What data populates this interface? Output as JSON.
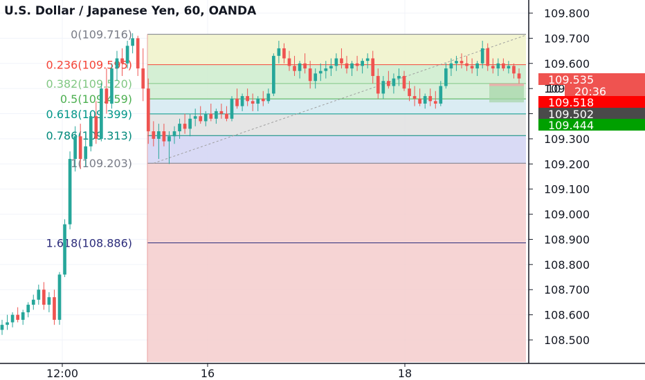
{
  "chart_data": {
    "type": "candlestick",
    "title": "U.S. Dollar / Japanese Yen, 60, OANDA",
    "ylim": [
      108.43,
      109.86
    ],
    "y_ticks": [
      "109.800",
      "109.700",
      "109.600",
      "109.500",
      "109.400",
      "109.300",
      "109.200",
      "109.100",
      "109.000",
      "108.900",
      "108.800",
      "108.700",
      "108.600",
      "108.500"
    ],
    "x_ticks": [
      "12:00",
      "16",
      "18"
    ],
    "grid": true,
    "colors": {
      "up": "#26a69a",
      "down": "#ef5350",
      "text": "#131722",
      "axis": "#131722"
    },
    "fib_levels": [
      {
        "ratio": "0",
        "price": 109.716,
        "label": "0(109.716)",
        "color": "#787b86",
        "fill": "#f4cccc"
      },
      {
        "ratio": "0.236",
        "price": 109.595,
        "label": "0.236(109.595)",
        "color": "#f44336",
        "fill": "#f0f2c9"
      },
      {
        "ratio": "0.382",
        "price": 109.52,
        "label": "0.382(109.520)",
        "color": "#81c784",
        "fill": "#cdeccc"
      },
      {
        "ratio": "0.5",
        "price": 109.459,
        "label": "0.5(109.459)",
        "color": "#4caf50",
        "fill": "#d0ecd2"
      },
      {
        "ratio": "0.618",
        "price": 109.399,
        "label": "0.618(109.399)",
        "color": "#009688",
        "fill": "#d4e9f1"
      },
      {
        "ratio": "0.786",
        "price": 109.313,
        "label": "0.786(109.313)",
        "color": "#00897b",
        "fill": "#e1e1e1"
      },
      {
        "ratio": "1",
        "price": 109.203,
        "label": "1(109.203)",
        "color": "#787b86",
        "fill": "#d2d3f3"
      },
      {
        "ratio": "1.618",
        "price": 108.886,
        "label": "1.618(108.886)",
        "color": "#2b2b7a",
        "fill": "#f4cccc"
      }
    ],
    "price_tags": [
      {
        "label": "109.535",
        "price": 109.535,
        "color": "#ef5350"
      },
      {
        "label": "20:36",
        "price": 109.5,
        "color": "#ef5350"
      },
      {
        "label": "109.518",
        "price": 109.468,
        "color": "#ff0000"
      },
      {
        "label": "109.502",
        "price": 109.436,
        "color": "#4a4a4a"
      },
      {
        "label": "109.444",
        "price": 109.404,
        "color": "#00a000"
      }
    ],
    "candles": [
      [
        108.54,
        108.58,
        108.52,
        108.56
      ],
      [
        108.56,
        108.6,
        108.54,
        108.57
      ],
      [
        108.57,
        108.61,
        108.55,
        108.6
      ],
      [
        108.6,
        108.63,
        108.57,
        108.58
      ],
      [
        108.58,
        108.62,
        108.56,
        108.61
      ],
      [
        108.61,
        108.65,
        108.59,
        108.64
      ],
      [
        108.64,
        108.68,
        108.62,
        108.66
      ],
      [
        108.66,
        108.72,
        108.64,
        108.7
      ],
      [
        108.7,
        108.73,
        108.62,
        108.64
      ],
      [
        108.64,
        108.69,
        108.61,
        108.67
      ],
      [
        108.67,
        108.7,
        108.56,
        108.58
      ],
      [
        108.58,
        108.77,
        108.56,
        108.76
      ],
      [
        108.76,
        108.98,
        108.75,
        108.96
      ],
      [
        108.96,
        109.25,
        108.94,
        109.22
      ],
      [
        109.22,
        109.35,
        109.17,
        109.31
      ],
      [
        109.31,
        109.36,
        109.18,
        109.22
      ],
      [
        109.22,
        109.33,
        109.19,
        109.27
      ],
      [
        109.27,
        109.4,
        109.25,
        109.39
      ],
      [
        109.39,
        109.45,
        109.28,
        109.3
      ],
      [
        109.3,
        109.52,
        109.29,
        109.5
      ],
      [
        109.5,
        109.58,
        109.4,
        109.44
      ],
      [
        109.44,
        109.6,
        109.42,
        109.58
      ],
      [
        109.58,
        109.65,
        109.53,
        109.62
      ],
      [
        109.62,
        109.66,
        109.55,
        109.6
      ],
      [
        109.6,
        109.69,
        109.58,
        109.67
      ],
      [
        109.67,
        109.72,
        109.64,
        109.7
      ],
      [
        109.7,
        109.71,
        109.55,
        109.58
      ],
      [
        109.58,
        109.66,
        109.45,
        109.5
      ],
      [
        109.5,
        109.54,
        109.28,
        109.33
      ],
      [
        109.33,
        109.37,
        109.27,
        109.3
      ],
      [
        109.3,
        109.36,
        109.22,
        109.33
      ],
      [
        109.33,
        109.36,
        109.27,
        109.29
      ],
      [
        109.29,
        109.33,
        109.2,
        109.31
      ],
      [
        109.31,
        109.35,
        109.28,
        109.33
      ],
      [
        109.33,
        109.38,
        109.3,
        109.36
      ],
      [
        109.36,
        109.4,
        109.32,
        109.34
      ],
      [
        109.34,
        109.4,
        109.31,
        109.38
      ],
      [
        109.38,
        109.42,
        109.35,
        109.39
      ],
      [
        109.39,
        109.43,
        109.36,
        109.37
      ],
      [
        109.37,
        109.41,
        109.35,
        109.4
      ],
      [
        109.4,
        109.44,
        109.37,
        109.38
      ],
      [
        109.38,
        109.42,
        109.36,
        109.41
      ],
      [
        109.41,
        109.44,
        109.38,
        109.4
      ],
      [
        109.4,
        109.43,
        109.37,
        109.38
      ],
      [
        109.38,
        109.47,
        109.37,
        109.46
      ],
      [
        109.46,
        109.5,
        109.42,
        109.43
      ],
      [
        109.43,
        109.48,
        109.41,
        109.47
      ],
      [
        109.47,
        109.5,
        109.43,
        109.45
      ],
      [
        109.45,
        109.48,
        109.41,
        109.44
      ],
      [
        109.44,
        109.47,
        109.41,
        109.46
      ],
      [
        109.46,
        109.49,
        109.43,
        109.45
      ],
      [
        109.45,
        109.5,
        109.44,
        109.48
      ],
      [
        109.48,
        109.64,
        109.47,
        109.63
      ],
      [
        109.63,
        109.69,
        109.6,
        109.66
      ],
      [
        109.66,
        109.68,
        109.6,
        109.62
      ],
      [
        109.62,
        109.65,
        109.57,
        109.59
      ],
      [
        109.59,
        109.63,
        109.55,
        109.57
      ],
      [
        109.57,
        109.61,
        109.54,
        109.6
      ],
      [
        109.6,
        109.64,
        109.56,
        109.58
      ],
      [
        109.58,
        109.61,
        109.5,
        109.53
      ],
      [
        109.53,
        109.58,
        109.5,
        109.56
      ],
      [
        109.56,
        109.6,
        109.53,
        109.57
      ],
      [
        109.57,
        109.61,
        109.54,
        109.58
      ],
      [
        109.58,
        109.62,
        109.55,
        109.59
      ],
      [
        109.59,
        109.64,
        109.57,
        109.62
      ],
      [
        109.62,
        109.66,
        109.58,
        109.6
      ],
      [
        109.6,
        109.63,
        109.56,
        109.58
      ],
      [
        109.58,
        109.61,
        109.55,
        109.6
      ],
      [
        109.6,
        109.63,
        109.57,
        109.59
      ],
      [
        109.59,
        109.62,
        109.56,
        109.61
      ],
      [
        109.61,
        109.64,
        109.58,
        109.62
      ],
      [
        109.62,
        109.65,
        109.52,
        109.55
      ],
      [
        109.55,
        109.58,
        109.46,
        109.48
      ],
      [
        109.48,
        109.55,
        109.46,
        109.53
      ],
      [
        109.53,
        109.57,
        109.5,
        109.51
      ],
      [
        109.51,
        109.56,
        109.48,
        109.54
      ],
      [
        109.54,
        109.58,
        109.51,
        109.55
      ],
      [
        109.55,
        109.57,
        109.49,
        109.5
      ],
      [
        109.5,
        109.53,
        109.45,
        109.47
      ],
      [
        109.47,
        109.51,
        109.43,
        109.46
      ],
      [
        109.46,
        109.5,
        109.43,
        109.44
      ],
      [
        109.44,
        109.48,
        109.42,
        109.47
      ],
      [
        109.47,
        109.5,
        109.43,
        109.45
      ],
      [
        109.45,
        109.49,
        109.42,
        109.44
      ],
      [
        109.44,
        109.53,
        109.43,
        109.51
      ],
      [
        109.51,
        109.6,
        109.5,
        109.58
      ],
      [
        109.58,
        109.62,
        109.55,
        109.6
      ],
      [
        109.6,
        109.63,
        109.57,
        109.61
      ],
      [
        109.61,
        109.64,
        109.58,
        109.6
      ],
      [
        109.6,
        109.63,
        109.57,
        109.59
      ],
      [
        109.59,
        109.62,
        109.56,
        109.58
      ],
      [
        109.58,
        109.61,
        109.55,
        109.6
      ],
      [
        109.6,
        109.69,
        109.58,
        109.66
      ],
      [
        109.66,
        109.68,
        109.57,
        109.59
      ],
      [
        109.59,
        109.62,
        109.56,
        109.58
      ],
      [
        109.58,
        109.62,
        109.55,
        109.6
      ],
      [
        109.6,
        109.62,
        109.57,
        109.58
      ],
      [
        109.58,
        109.61,
        109.56,
        109.59
      ],
      [
        109.59,
        109.6,
        109.54,
        109.56
      ],
      [
        109.56,
        109.58,
        109.52,
        109.54
      ]
    ]
  }
}
